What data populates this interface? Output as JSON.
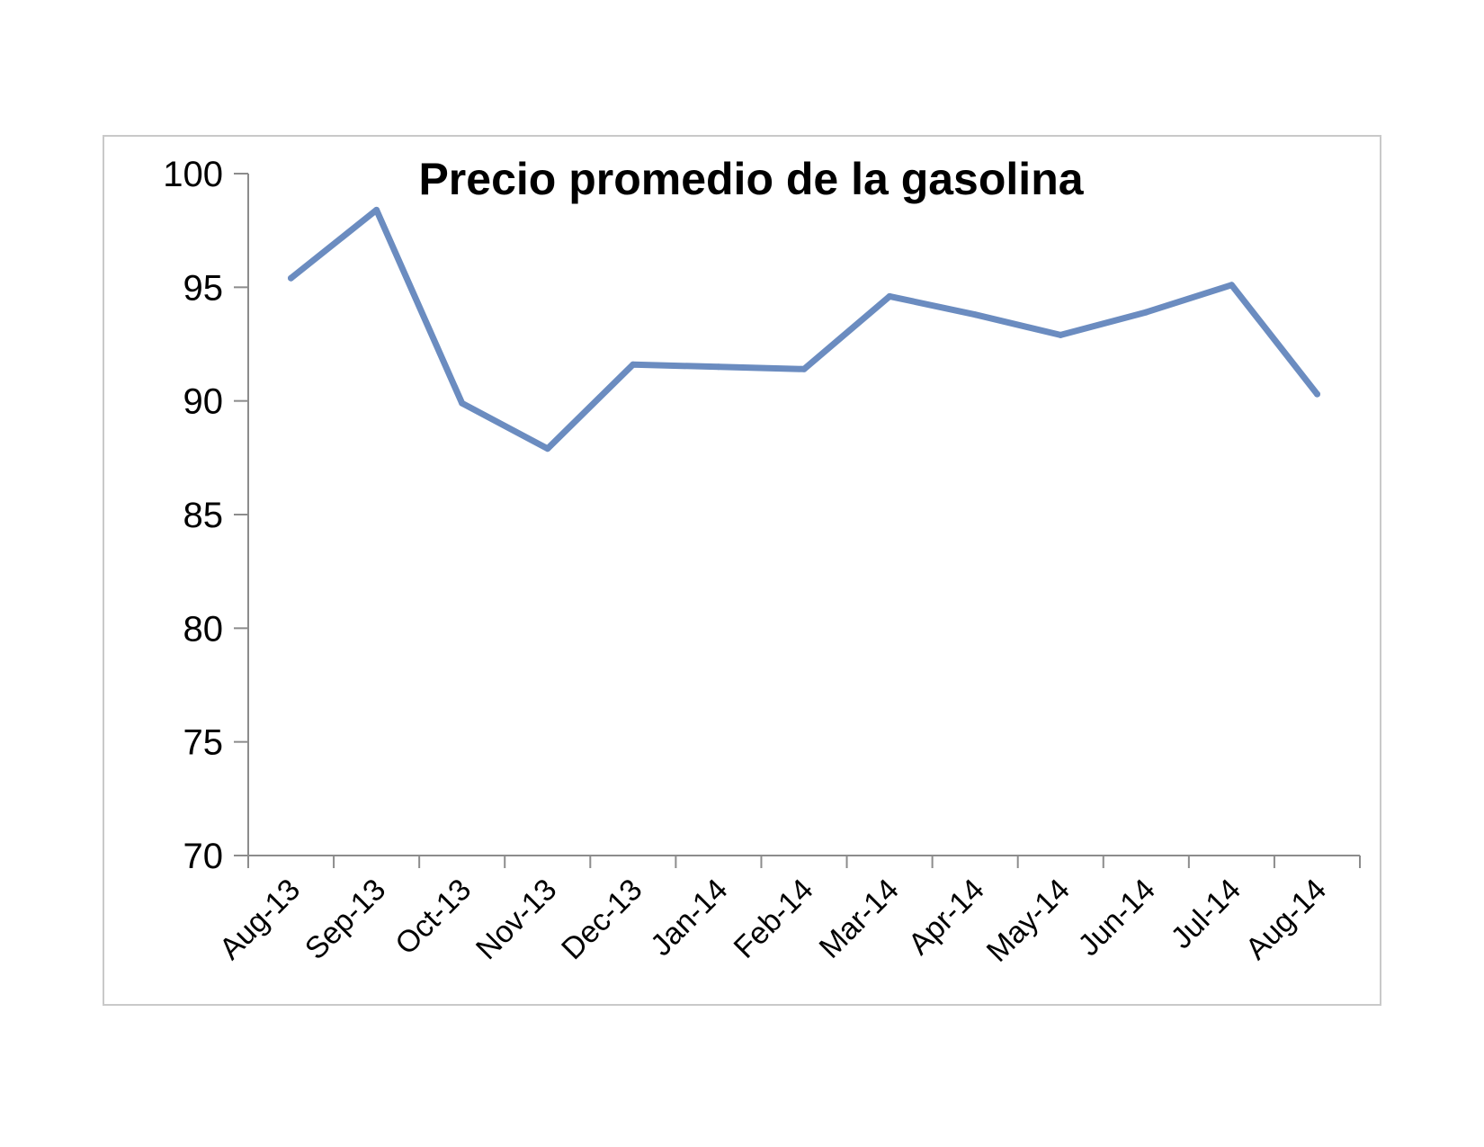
{
  "chart_data": {
    "type": "line",
    "title": "Precio promedio de la gasolina",
    "xlabel": "",
    "ylabel": "",
    "categories": [
      "Aug-13",
      "Sep-13",
      "Oct-13",
      "Nov-13",
      "Dec-13",
      "Jan-14",
      "Feb-14",
      "Mar-14",
      "Apr-14",
      "May-14",
      "Jun-14",
      "Jul-14",
      "Aug-14"
    ],
    "series": [
      {
        "values": [
          95.4,
          98.4,
          89.9,
          87.9,
          91.6,
          91.5,
          91.4,
          94.6,
          93.8,
          92.9,
          93.9,
          95.1,
          90.3
        ]
      }
    ],
    "ylim": [
      70,
      100
    ],
    "yticks": [
      "70",
      "75",
      "80",
      "85",
      "90",
      "95",
      "100"
    ],
    "grid": false,
    "legend": "none",
    "colors": {
      "line": "#6b8cc0",
      "axis": "#8c8c8c",
      "frame": "#c9c9c9"
    }
  }
}
